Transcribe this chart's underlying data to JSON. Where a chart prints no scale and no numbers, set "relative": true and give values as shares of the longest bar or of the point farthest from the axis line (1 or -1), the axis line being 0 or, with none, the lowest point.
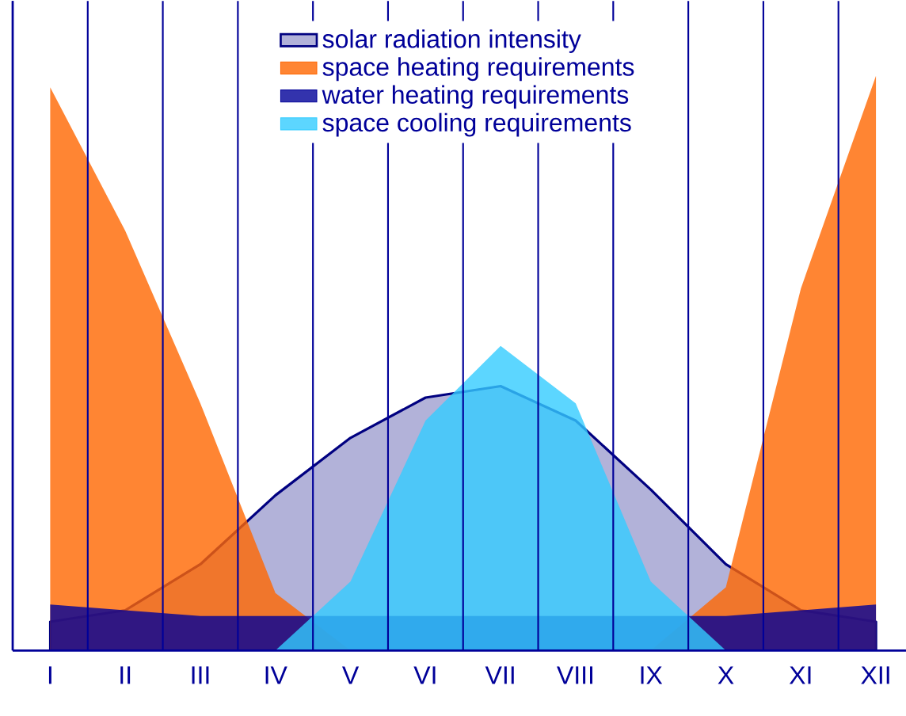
{
  "chart_data": {
    "type": "area",
    "relative": true,
    "categories": [
      "I",
      "II",
      "III",
      "IV",
      "V",
      "VI",
      "VII",
      "VIII",
      "IX",
      "X",
      "XI",
      "XII"
    ],
    "grid": "x",
    "legend": "top",
    "series": [
      {
        "name": "solar radiation intensity",
        "color": "#000080",
        "values": [
          0.05,
          0.07,
          0.15,
          0.27,
          0.37,
          0.44,
          0.46,
          0.4,
          0.28,
          0.15,
          0.07,
          0.05
        ]
      },
      {
        "name": "space heating requirements",
        "color": "#ff6600",
        "values": [
          0.98,
          0.73,
          0.43,
          0.1,
          0,
          0,
          0,
          0,
          0,
          0.11,
          0.63,
          1
        ]
      },
      {
        "name": "water heating requirements",
        "color": "#000099",
        "values": [
          0.08,
          0.07,
          0.06,
          0.06,
          0.06,
          0.06,
          0.06,
          0.06,
          0.06,
          0.06,
          0.07,
          0.08
        ]
      },
      {
        "name": "space cooling requirements",
        "color": "#33ccff",
        "values": [
          0,
          0,
          0,
          0,
          0.12,
          0.4,
          0.53,
          0.43,
          0.12,
          0,
          0,
          0
        ]
      }
    ]
  }
}
